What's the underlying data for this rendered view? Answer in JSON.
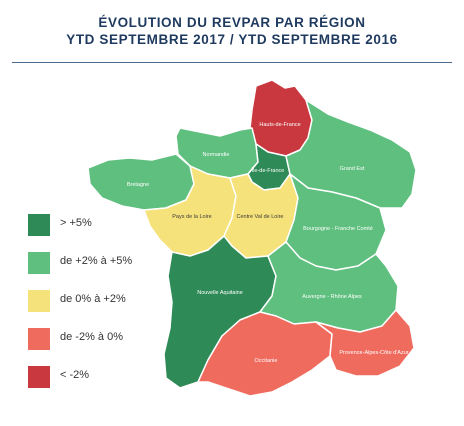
{
  "title": {
    "line1": "ÉVOLUTION DU REVPAR PAR RÉGION",
    "line2": "YTD SEPTEMBRE 2017 / YTD SEPTEMBRE 2016"
  },
  "colors": {
    "dark_green": "#2e8b57",
    "light_green": "#5fbf7f",
    "yellow": "#f6e27a",
    "light_red": "#ef6b5e",
    "dark_red": "#c8383e",
    "border": "#ffffff"
  },
  "legend": [
    {
      "label": "> +5%",
      "color": "#2e8b57"
    },
    {
      "label": "de +2% à +5%",
      "color": "#5fbf7f"
    },
    {
      "label": "de 0% à +2%",
      "color": "#f6e27a"
    },
    {
      "label": "de -2% à 0%",
      "color": "#ef6b5e"
    },
    {
      "label": "< -2%",
      "color": "#c8383e"
    }
  ],
  "regions": [
    {
      "id": "hauts-de-france",
      "label": "Hauts-de-France",
      "class": "< -2%"
    },
    {
      "id": "normandie",
      "label": "Normandie",
      "class": "de +2% à +5%"
    },
    {
      "id": "ile-de-france",
      "label": "Île-de-France",
      "class": "> +5%"
    },
    {
      "id": "grand-est",
      "label": "Grand Est",
      "class": "de +2% à +5%"
    },
    {
      "id": "bretagne",
      "label": "Bretagne",
      "class": "de +2% à +5%"
    },
    {
      "id": "pays-de-la-loire",
      "label": "Pays de la Loire",
      "class": "de 0% à +2%"
    },
    {
      "id": "centre-val-de-loire",
      "label": "Centre Val de Loire",
      "class": "de 0% à +2%"
    },
    {
      "id": "bourgogne-franche-comte",
      "label": "Bourgogne - Franche Comté",
      "class": "de +2% à +5%"
    },
    {
      "id": "nouvelle-aquitaine",
      "label": "Nouvelle Aquitaine",
      "class": "> +5%"
    },
    {
      "id": "auvergne-rhone-alpes",
      "label": "Auvergne - Rhône Alpes",
      "class": "de +2% à +5%"
    },
    {
      "id": "occitanie",
      "label": "Occitanie",
      "class": "de -2% à 0%"
    },
    {
      "id": "provence-alpes-cote-dazur",
      "label": "Provence-Alpes-Côte d'Azur",
      "class": "de -2% à 0%"
    }
  ]
}
